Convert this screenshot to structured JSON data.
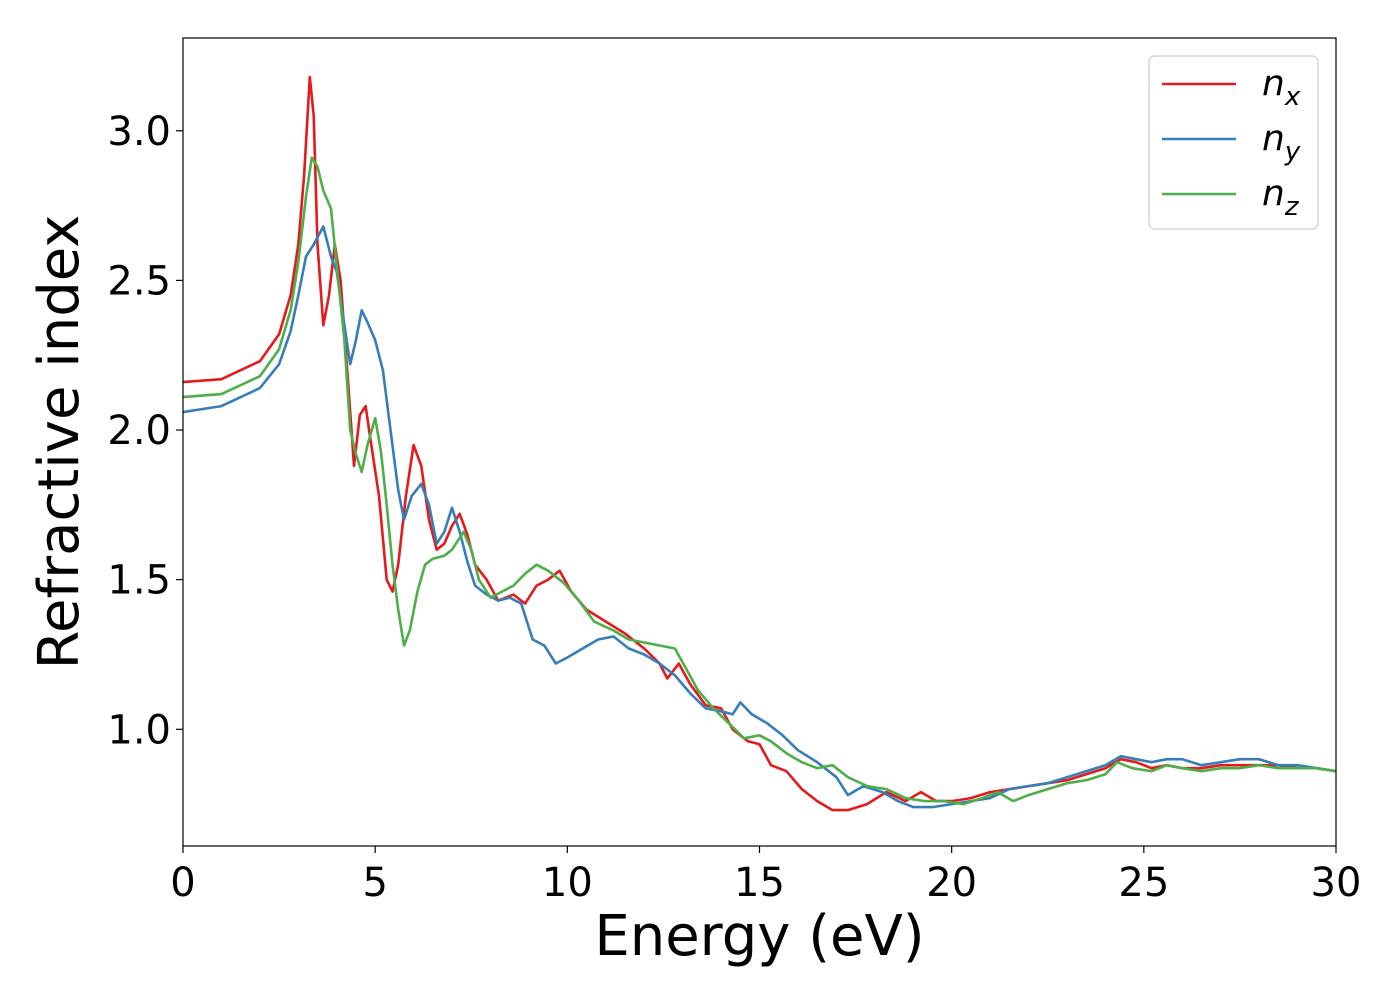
{
  "chart_data": {
    "type": "line",
    "xlabel": "Energy (eV)",
    "ylabel": "Refractive index",
    "xlim": [
      0,
      30
    ],
    "ylim": [
      0.61,
      3.31
    ],
    "xticks": [
      0,
      5,
      10,
      15,
      20,
      25,
      30
    ],
    "xtick_labels": [
      "0",
      "5",
      "10",
      "15",
      "20",
      "25",
      "30"
    ],
    "yticks": [
      1.0,
      1.5,
      2.0,
      2.5,
      3.0
    ],
    "ytick_labels": [
      "1.0",
      "1.5",
      "2.0",
      "2.5",
      "3.0"
    ],
    "grid": false,
    "legend_position": "top-right",
    "series": [
      {
        "name": "n",
        "subscript": "x",
        "color": "#e41a1c",
        "points": [
          [
            0,
            2.16
          ],
          [
            1,
            2.17
          ],
          [
            2,
            2.23
          ],
          [
            2.5,
            2.32
          ],
          [
            2.8,
            2.45
          ],
          [
            3.0,
            2.62
          ],
          [
            3.15,
            2.85
          ],
          [
            3.3,
            3.18
          ],
          [
            3.4,
            3.05
          ],
          [
            3.5,
            2.62
          ],
          [
            3.65,
            2.35
          ],
          [
            3.8,
            2.45
          ],
          [
            3.95,
            2.62
          ],
          [
            4.1,
            2.5
          ],
          [
            4.3,
            2.15
          ],
          [
            4.45,
            1.88
          ],
          [
            4.6,
            2.05
          ],
          [
            4.75,
            2.08
          ],
          [
            4.9,
            1.95
          ],
          [
            5.1,
            1.78
          ],
          [
            5.3,
            1.5
          ],
          [
            5.45,
            1.46
          ],
          [
            5.6,
            1.55
          ],
          [
            5.8,
            1.78
          ],
          [
            6.0,
            1.95
          ],
          [
            6.2,
            1.88
          ],
          [
            6.4,
            1.7
          ],
          [
            6.6,
            1.6
          ],
          [
            6.8,
            1.62
          ],
          [
            7.0,
            1.68
          ],
          [
            7.2,
            1.72
          ],
          [
            7.4,
            1.65
          ],
          [
            7.6,
            1.55
          ],
          [
            7.9,
            1.5
          ],
          [
            8.2,
            1.43
          ],
          [
            8.6,
            1.45
          ],
          [
            8.9,
            1.42
          ],
          [
            9.2,
            1.48
          ],
          [
            9.5,
            1.5
          ],
          [
            9.8,
            1.53
          ],
          [
            10.1,
            1.46
          ],
          [
            10.5,
            1.4
          ],
          [
            11.0,
            1.36
          ],
          [
            11.5,
            1.32
          ],
          [
            12.0,
            1.27
          ],
          [
            12.4,
            1.22
          ],
          [
            12.6,
            1.17
          ],
          [
            12.9,
            1.22
          ],
          [
            13.2,
            1.15
          ],
          [
            13.6,
            1.08
          ],
          [
            14.0,
            1.07
          ],
          [
            14.3,
            1.0
          ],
          [
            14.7,
            0.96
          ],
          [
            15.0,
            0.95
          ],
          [
            15.3,
            0.88
          ],
          [
            15.7,
            0.86
          ],
          [
            16.1,
            0.8
          ],
          [
            16.5,
            0.76
          ],
          [
            16.9,
            0.73
          ],
          [
            17.3,
            0.73
          ],
          [
            17.8,
            0.75
          ],
          [
            18.3,
            0.79
          ],
          [
            18.8,
            0.76
          ],
          [
            19.2,
            0.79
          ],
          [
            19.6,
            0.76
          ],
          [
            20.0,
            0.76
          ],
          [
            20.5,
            0.77
          ],
          [
            21.0,
            0.79
          ],
          [
            21.5,
            0.8
          ],
          [
            22.0,
            0.81
          ],
          [
            22.5,
            0.82
          ],
          [
            23.0,
            0.83
          ],
          [
            23.5,
            0.85
          ],
          [
            24.0,
            0.87
          ],
          [
            24.4,
            0.9
          ],
          [
            24.8,
            0.89
          ],
          [
            25.2,
            0.87
          ],
          [
            25.6,
            0.88
          ],
          [
            26.0,
            0.87
          ],
          [
            26.5,
            0.87
          ],
          [
            27.0,
            0.88
          ],
          [
            27.5,
            0.88
          ],
          [
            28.0,
            0.88
          ],
          [
            28.5,
            0.88
          ],
          [
            29.0,
            0.87
          ],
          [
            29.5,
            0.87
          ],
          [
            30.0,
            0.86
          ]
        ]
      },
      {
        "name": "n",
        "subscript": "y",
        "color": "#377eb8",
        "points": [
          [
            0,
            2.06
          ],
          [
            1,
            2.08
          ],
          [
            2,
            2.14
          ],
          [
            2.5,
            2.22
          ],
          [
            2.8,
            2.33
          ],
          [
            3.0,
            2.45
          ],
          [
            3.2,
            2.58
          ],
          [
            3.4,
            2.62
          ],
          [
            3.65,
            2.68
          ],
          [
            3.85,
            2.58
          ],
          [
            4.0,
            2.53
          ],
          [
            4.2,
            2.35
          ],
          [
            4.35,
            2.22
          ],
          [
            4.5,
            2.3
          ],
          [
            4.65,
            2.4
          ],
          [
            4.8,
            2.36
          ],
          [
            5.0,
            2.3
          ],
          [
            5.2,
            2.2
          ],
          [
            5.4,
            2.0
          ],
          [
            5.6,
            1.8
          ],
          [
            5.75,
            1.7
          ],
          [
            5.95,
            1.78
          ],
          [
            6.2,
            1.82
          ],
          [
            6.4,
            1.75
          ],
          [
            6.6,
            1.62
          ],
          [
            6.8,
            1.66
          ],
          [
            7.0,
            1.74
          ],
          [
            7.2,
            1.66
          ],
          [
            7.4,
            1.56
          ],
          [
            7.6,
            1.48
          ],
          [
            7.9,
            1.45
          ],
          [
            8.2,
            1.43
          ],
          [
            8.5,
            1.44
          ],
          [
            8.8,
            1.42
          ],
          [
            9.1,
            1.3
          ],
          [
            9.4,
            1.28
          ],
          [
            9.7,
            1.22
          ],
          [
            10.0,
            1.24
          ],
          [
            10.4,
            1.27
          ],
          [
            10.8,
            1.3
          ],
          [
            11.2,
            1.31
          ],
          [
            11.6,
            1.27
          ],
          [
            12.0,
            1.25
          ],
          [
            12.4,
            1.22
          ],
          [
            12.8,
            1.18
          ],
          [
            13.2,
            1.12
          ],
          [
            13.6,
            1.07
          ],
          [
            14.0,
            1.06
          ],
          [
            14.3,
            1.05
          ],
          [
            14.5,
            1.09
          ],
          [
            14.8,
            1.05
          ],
          [
            15.2,
            1.02
          ],
          [
            15.6,
            0.98
          ],
          [
            16.0,
            0.93
          ],
          [
            16.5,
            0.89
          ],
          [
            17.0,
            0.84
          ],
          [
            17.3,
            0.78
          ],
          [
            17.7,
            0.81
          ],
          [
            18.2,
            0.79
          ],
          [
            18.6,
            0.76
          ],
          [
            19.0,
            0.74
          ],
          [
            19.5,
            0.74
          ],
          [
            20.0,
            0.75
          ],
          [
            20.5,
            0.76
          ],
          [
            21.0,
            0.77
          ],
          [
            21.5,
            0.8
          ],
          [
            22.0,
            0.81
          ],
          [
            22.5,
            0.82
          ],
          [
            23.0,
            0.84
          ],
          [
            23.5,
            0.86
          ],
          [
            24.0,
            0.88
          ],
          [
            24.4,
            0.91
          ],
          [
            24.8,
            0.9
          ],
          [
            25.2,
            0.89
          ],
          [
            25.6,
            0.9
          ],
          [
            26.0,
            0.9
          ],
          [
            26.5,
            0.88
          ],
          [
            27.0,
            0.89
          ],
          [
            27.5,
            0.9
          ],
          [
            28.0,
            0.9
          ],
          [
            28.5,
            0.88
          ],
          [
            29.0,
            0.88
          ],
          [
            29.5,
            0.87
          ],
          [
            30.0,
            0.86
          ]
        ]
      },
      {
        "name": "n",
        "subscript": "z",
        "color": "#4daf4a",
        "points": [
          [
            0,
            2.11
          ],
          [
            1,
            2.12
          ],
          [
            2,
            2.18
          ],
          [
            2.5,
            2.27
          ],
          [
            2.8,
            2.4
          ],
          [
            3.0,
            2.56
          ],
          [
            3.2,
            2.78
          ],
          [
            3.35,
            2.91
          ],
          [
            3.5,
            2.88
          ],
          [
            3.65,
            2.8
          ],
          [
            3.85,
            2.74
          ],
          [
            4.0,
            2.55
          ],
          [
            4.2,
            2.3
          ],
          [
            4.35,
            2.0
          ],
          [
            4.5,
            1.92
          ],
          [
            4.65,
            1.86
          ],
          [
            4.8,
            1.95
          ],
          [
            5.0,
            2.04
          ],
          [
            5.15,
            1.93
          ],
          [
            5.3,
            1.75
          ],
          [
            5.45,
            1.55
          ],
          [
            5.6,
            1.4
          ],
          [
            5.75,
            1.28
          ],
          [
            5.9,
            1.33
          ],
          [
            6.1,
            1.46
          ],
          [
            6.3,
            1.55
          ],
          [
            6.5,
            1.57
          ],
          [
            6.8,
            1.58
          ],
          [
            7.0,
            1.6
          ],
          [
            7.3,
            1.66
          ],
          [
            7.5,
            1.6
          ],
          [
            7.7,
            1.5
          ],
          [
            8.0,
            1.44
          ],
          [
            8.3,
            1.46
          ],
          [
            8.6,
            1.48
          ],
          [
            8.9,
            1.52
          ],
          [
            9.2,
            1.55
          ],
          [
            9.5,
            1.53
          ],
          [
            9.9,
            1.49
          ],
          [
            10.3,
            1.43
          ],
          [
            10.7,
            1.36
          ],
          [
            11.2,
            1.33
          ],
          [
            11.6,
            1.3
          ],
          [
            12.0,
            1.29
          ],
          [
            12.4,
            1.28
          ],
          [
            12.8,
            1.27
          ],
          [
            13.1,
            1.2
          ],
          [
            13.4,
            1.13
          ],
          [
            13.8,
            1.07
          ],
          [
            14.2,
            1.02
          ],
          [
            14.6,
            0.97
          ],
          [
            15.0,
            0.98
          ],
          [
            15.3,
            0.96
          ],
          [
            15.7,
            0.92
          ],
          [
            16.1,
            0.89
          ],
          [
            16.5,
            0.87
          ],
          [
            16.9,
            0.88
          ],
          [
            17.3,
            0.84
          ],
          [
            17.8,
            0.81
          ],
          [
            18.3,
            0.8
          ],
          [
            18.8,
            0.77
          ],
          [
            19.3,
            0.76
          ],
          [
            19.8,
            0.76
          ],
          [
            20.3,
            0.75
          ],
          [
            20.8,
            0.77
          ],
          [
            21.2,
            0.79
          ],
          [
            21.6,
            0.76
          ],
          [
            22.0,
            0.78
          ],
          [
            22.5,
            0.8
          ],
          [
            23.0,
            0.82
          ],
          [
            23.5,
            0.83
          ],
          [
            24.0,
            0.85
          ],
          [
            24.3,
            0.89
          ],
          [
            24.7,
            0.87
          ],
          [
            25.2,
            0.86
          ],
          [
            25.6,
            0.88
          ],
          [
            26.0,
            0.87
          ],
          [
            26.5,
            0.86
          ],
          [
            27.0,
            0.87
          ],
          [
            27.5,
            0.87
          ],
          [
            28.0,
            0.88
          ],
          [
            28.5,
            0.87
          ],
          [
            29.0,
            0.87
          ],
          [
            29.5,
            0.87
          ],
          [
            30.0,
            0.86
          ]
        ]
      }
    ]
  }
}
